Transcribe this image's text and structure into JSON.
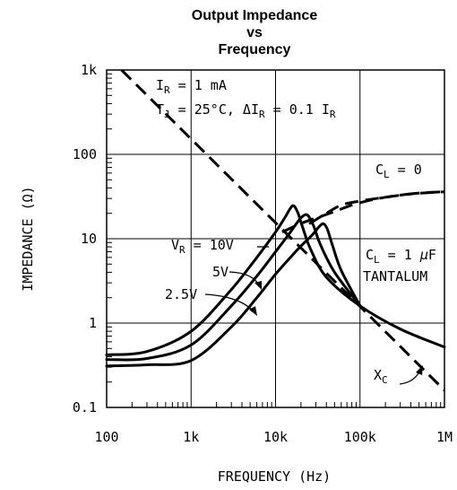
{
  "chart_data": {
    "type": "line",
    "title": [
      "Output Impedance",
      "vs",
      "Frequency"
    ],
    "xlabel": "FREQUENCY (Hz)",
    "ylabel": "IMPEDANCE (Ω)",
    "xscale": "log",
    "yscale": "log",
    "xlim": [
      100,
      1000000
    ],
    "ylim": [
      0.1,
      1000
    ],
    "grid": true,
    "x_ticks": [
      {
        "value": 100,
        "label": "100"
      },
      {
        "value": 1000,
        "label": "1k"
      },
      {
        "value": 10000,
        "label": "10k"
      },
      {
        "value": 100000,
        "label": "100k"
      },
      {
        "value": 1000000,
        "label": "1M"
      }
    ],
    "y_ticks": [
      {
        "value": 0.1,
        "label": "0.1"
      },
      {
        "value": 1,
        "label": "1"
      },
      {
        "value": 10,
        "label": "10"
      },
      {
        "value": 100,
        "label": "100"
      },
      {
        "value": 1000,
        "label": "1k"
      }
    ],
    "conditions": {
      "line1": {
        "prefix": "I",
        "sub": "R",
        "rest": " = 1 mA"
      },
      "line2": {
        "p1": "T",
        "s1": "J",
        "p2": " = 25°C, ΔI",
        "s2": "R",
        "p3": " = 0.1 I",
        "s3": "R"
      }
    },
    "series": [
      {
        "name": "V_R = 10V",
        "style": "solid",
        "x": [
          100,
          300,
          1000,
          3000,
          6000,
          10000,
          13000,
          15000,
          16500,
          18500,
          21000,
          26000,
          40000,
          100000,
          300000,
          1000000
        ],
        "y": [
          0.42,
          0.46,
          0.8,
          2.5,
          6.0,
          12.0,
          18.0,
          23.0,
          24.5,
          20.0,
          13.5,
          7.5,
          3.5,
          1.6,
          0.85,
          0.52
        ]
      },
      {
        "name": "V_R = 5V",
        "style": "solid",
        "x": [
          100,
          300,
          1000,
          3000,
          6000,
          10000,
          15000,
          18000,
          21000,
          24000,
          28000,
          34000,
          50000,
          100000
        ],
        "y": [
          0.37,
          0.38,
          0.55,
          1.6,
          3.6,
          7.0,
          12.0,
          15.5,
          18.5,
          19.0,
          14.5,
          8.5,
          4.0,
          1.6
        ]
      },
      {
        "name": "V_R = 2.5V",
        "style": "solid",
        "x": [
          100,
          300,
          1000,
          3000,
          6000,
          10000,
          15000,
          20000,
          27000,
          33000,
          37000,
          41000,
          47000,
          60000,
          100000
        ],
        "y": [
          0.31,
          0.32,
          0.36,
          0.9,
          2.0,
          3.8,
          6.0,
          8.2,
          11.0,
          14.0,
          15.0,
          13.0,
          8.5,
          4.2,
          1.6
        ]
      },
      {
        "name": "C_L = 0",
        "style": "dashed",
        "x": [
          25000,
          40000,
          60000,
          100000,
          200000,
          400000,
          700000,
          1000000
        ],
        "y": [
          15,
          20,
          25,
          28,
          31,
          34,
          35.5,
          36
        ]
      },
      {
        "name": "X_C",
        "style": "dashed",
        "x": [
          150,
          1000000
        ],
        "y": [
          1000,
          0.16
        ]
      },
      {
        "name": "C_L = 1 µF TANTALUM",
        "style": "dashed",
        "x": [
          12000,
          18000,
          25000,
          35000,
          50000,
          80000,
          130000,
          200000,
          350000,
          600000,
          1000000
        ],
        "y": [
          12,
          14.5,
          16.5,
          18.5,
          21,
          25,
          28.5,
          31,
          33.5,
          35,
          36
        ]
      }
    ],
    "annotations": [
      {
        "id": "vr10",
        "main": "V",
        "sub": "R",
        "rest": " = 10V"
      },
      {
        "id": "v5",
        "text": "5V"
      },
      {
        "id": "v25",
        "text": "2.5V"
      },
      {
        "id": "cl0",
        "main": "C",
        "sub": "L",
        "rest": " = 0"
      },
      {
        "id": "cl1",
        "main": "C",
        "sub": "L",
        "rest": " = 1 ",
        "mu": "µ",
        "unit": "F"
      },
      {
        "id": "tant",
        "text": "TANTALUM"
      },
      {
        "id": "xc",
        "main": "X",
        "sub": "C"
      }
    ]
  }
}
